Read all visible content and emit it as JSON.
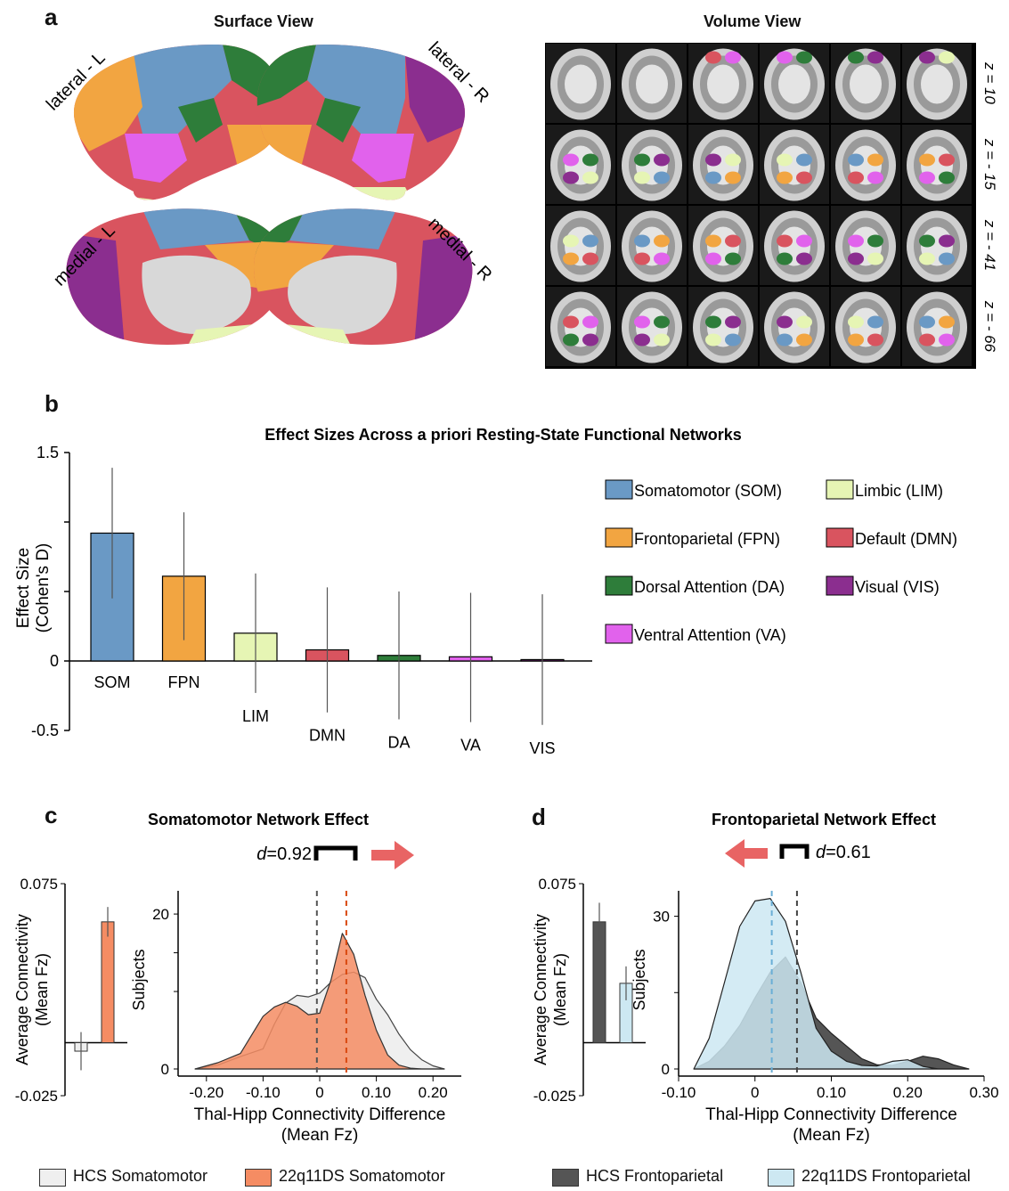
{
  "panel_letters": {
    "a": "a",
    "b": "b",
    "c": "c",
    "d": "d"
  },
  "colors": {
    "SOM": "#6a99c5",
    "FPN": "#f2a541",
    "LIM": "#e6f5b4",
    "DMN": "#d9545f",
    "DA": "#2e7d3a",
    "VA": "#e162ec",
    "VIS": "#8b2e8f",
    "hcs_som": "#efefef",
    "ds_som": "#f58c63",
    "hcs_fpn": "#555555",
    "ds_fpn": "#cde8f2",
    "arrow": "#e86464",
    "gray": "#d8d8d8"
  },
  "panel_a": {
    "surface_title": "Surface View",
    "volume_title": "Volume View",
    "surface_labels": [
      "lateral - L",
      "lateral - R",
      "medial - L",
      "medial - R"
    ],
    "slice_labels": [
      "z = 10",
      "z = - 15",
      "z = - 41",
      "z = - 66"
    ]
  },
  "chart_data": [
    {
      "type": "bar",
      "title": "Effect Sizes Across a priori Resting-State Functional Networks",
      "ylabel": "Effect Size (Cohen's D)",
      "ylabel_lines": [
        "Effect Size",
        "(Cohen's D)"
      ],
      "ylim": [
        -0.5,
        1.5
      ],
      "yticks": [
        "1.5",
        "",
        "",
        "0",
        "-0.5"
      ],
      "categories": [
        "SOM",
        "FPN",
        "LIM",
        "DMN",
        "DA",
        "VA",
        "VIS"
      ],
      "values": [
        0.92,
        0.61,
        0.2,
        0.08,
        0.04,
        0.03,
        0.01
      ],
      "err_low": [
        0.45,
        0.15,
        -0.23,
        -0.37,
        -0.42,
        -0.44,
        -0.46
      ],
      "err_high": [
        1.39,
        1.07,
        0.63,
        0.53,
        0.5,
        0.49,
        0.48
      ],
      "legend": [
        {
          "key": "SOM",
          "label": "Somatomotor (SOM)"
        },
        {
          "key": "LIM",
          "label": "Limbic (LIM)"
        },
        {
          "key": "FPN",
          "label": "Frontoparietal (FPN)"
        },
        {
          "key": "DMN",
          "label": "Default (DMN)"
        },
        {
          "key": "DA",
          "label": "Dorsal Attention (DA)"
        },
        {
          "key": "VIS",
          "label": "Visual (VIS)"
        },
        {
          "key": "VA",
          "label": "Ventral Attention (VA)"
        }
      ]
    },
    {
      "type": "bar",
      "title": "Somatomotor Network Effect",
      "ylabel": "Average Connectivity (Mean Fz)",
      "ylim": [
        -0.025,
        0.075
      ],
      "yticks": [
        "0.075",
        "-0.025"
      ],
      "series": [
        {
          "name": "HCS Somatomotor",
          "value": -0.004,
          "err": 0.009
        },
        {
          "name": "22q11DS Somatomotor",
          "value": 0.057,
          "err": 0.007
        }
      ]
    },
    {
      "type": "area",
      "title": "Somatomotor Network Effect",
      "effect_label": "=0.92",
      "xlabel": "Thal-Hipp Connectivity Difference",
      "xlabel_unit": "(Mean Fz)",
      "ylabel": "Subjects",
      "xlim": [
        -0.25,
        0.25
      ],
      "ylim": [
        0,
        23
      ],
      "xticks": [
        "-0.20",
        "-0.10",
        "0",
        "0.10",
        "0.20"
      ],
      "yticks": [
        "20",
        "",
        "",
        "0"
      ],
      "x": [
        -0.22,
        -0.18,
        -0.14,
        -0.1,
        -0.08,
        -0.06,
        -0.04,
        -0.02,
        0.0,
        0.02,
        0.04,
        0.06,
        0.08,
        0.1,
        0.12,
        0.14,
        0.16,
        0.18,
        0.2,
        0.22
      ],
      "series": [
        {
          "name": "HCS Somatomotor",
          "values": [
            0,
            0.5,
            1.6,
            2.6,
            5.8,
            8.5,
            9.5,
            9.3,
            9.8,
            11.2,
            12.2,
            12.5,
            11.8,
            9,
            7,
            4.5,
            2.5,
            1.2,
            0.4,
            0
          ]
        },
        {
          "name": "22q11DS Somatomotor",
          "values": [
            0,
            0.8,
            2,
            6.8,
            8,
            8.6,
            8.1,
            7,
            7.2,
            11.5,
            17.5,
            14.8,
            9.5,
            5,
            1.8,
            0.5,
            0.1,
            0,
            0,
            0
          ]
        }
      ],
      "vlines": [
        {
          "series": "HCS Somatomotor",
          "x": -0.005
        },
        {
          "series": "22q11DS Somatomotor",
          "x": 0.047
        }
      ]
    },
    {
      "type": "bar",
      "title": "Frontoparietal Network Effect",
      "ylabel": "Average Connectivity (Mean Fz)",
      "ylim": [
        -0.025,
        0.075
      ],
      "yticks": [
        "0.075",
        "-0.025"
      ],
      "series": [
        {
          "name": "HCS Frontoparietal",
          "value": 0.057,
          "err": 0.009
        },
        {
          "name": "22q11DS Frontoparietal",
          "value": 0.028,
          "err": 0.008
        }
      ]
    },
    {
      "type": "area",
      "title": "Frontoparietal Network Effect",
      "effect_label": "=0.61",
      "xlabel": "Thal-Hipp Connectivity Difference",
      "xlabel_unit": "(Mean Fz)",
      "ylabel": "Subjects",
      "xlim": [
        -0.1,
        0.3
      ],
      "ylim": [
        0,
        35
      ],
      "xticks": [
        "-0.10",
        "0",
        "0.10",
        "0.20",
        "0.30"
      ],
      "yticks": [
        "30",
        "",
        "0"
      ],
      "x": [
        -0.08,
        -0.06,
        -0.04,
        -0.02,
        0.0,
        0.02,
        0.04,
        0.06,
        0.08,
        0.1,
        0.12,
        0.14,
        0.16,
        0.18,
        0.2,
        0.22,
        0.24,
        0.26,
        0.28
      ],
      "series": [
        {
          "name": "HCS Frontoparietal",
          "values": [
            0,
            1.5,
            4.5,
            8.5,
            14,
            19,
            22,
            17,
            10,
            7,
            4.5,
            2,
            0.8,
            0.7,
            1.5,
            2.5,
            2,
            0.8,
            0
          ]
        },
        {
          "name": "22q11DS Frontoparietal",
          "values": [
            0,
            6,
            17,
            28,
            33,
            33.5,
            29,
            19,
            8,
            3.5,
            1.5,
            0.7,
            0.6,
            1.5,
            1.8,
            0.5,
            0,
            0,
            0
          ]
        }
      ],
      "vlines": [
        {
          "series": "22q11DS Frontoparietal",
          "x": 0.022
        },
        {
          "series": "HCS Frontoparietal",
          "x": 0.055
        }
      ]
    }
  ],
  "legend_bottom": [
    "HCS Somatomotor",
    "22q11DS Somatomotor",
    "HCS Frontoparietal",
    "22q11DS Frontoparietal"
  ],
  "d_symbol": "d"
}
